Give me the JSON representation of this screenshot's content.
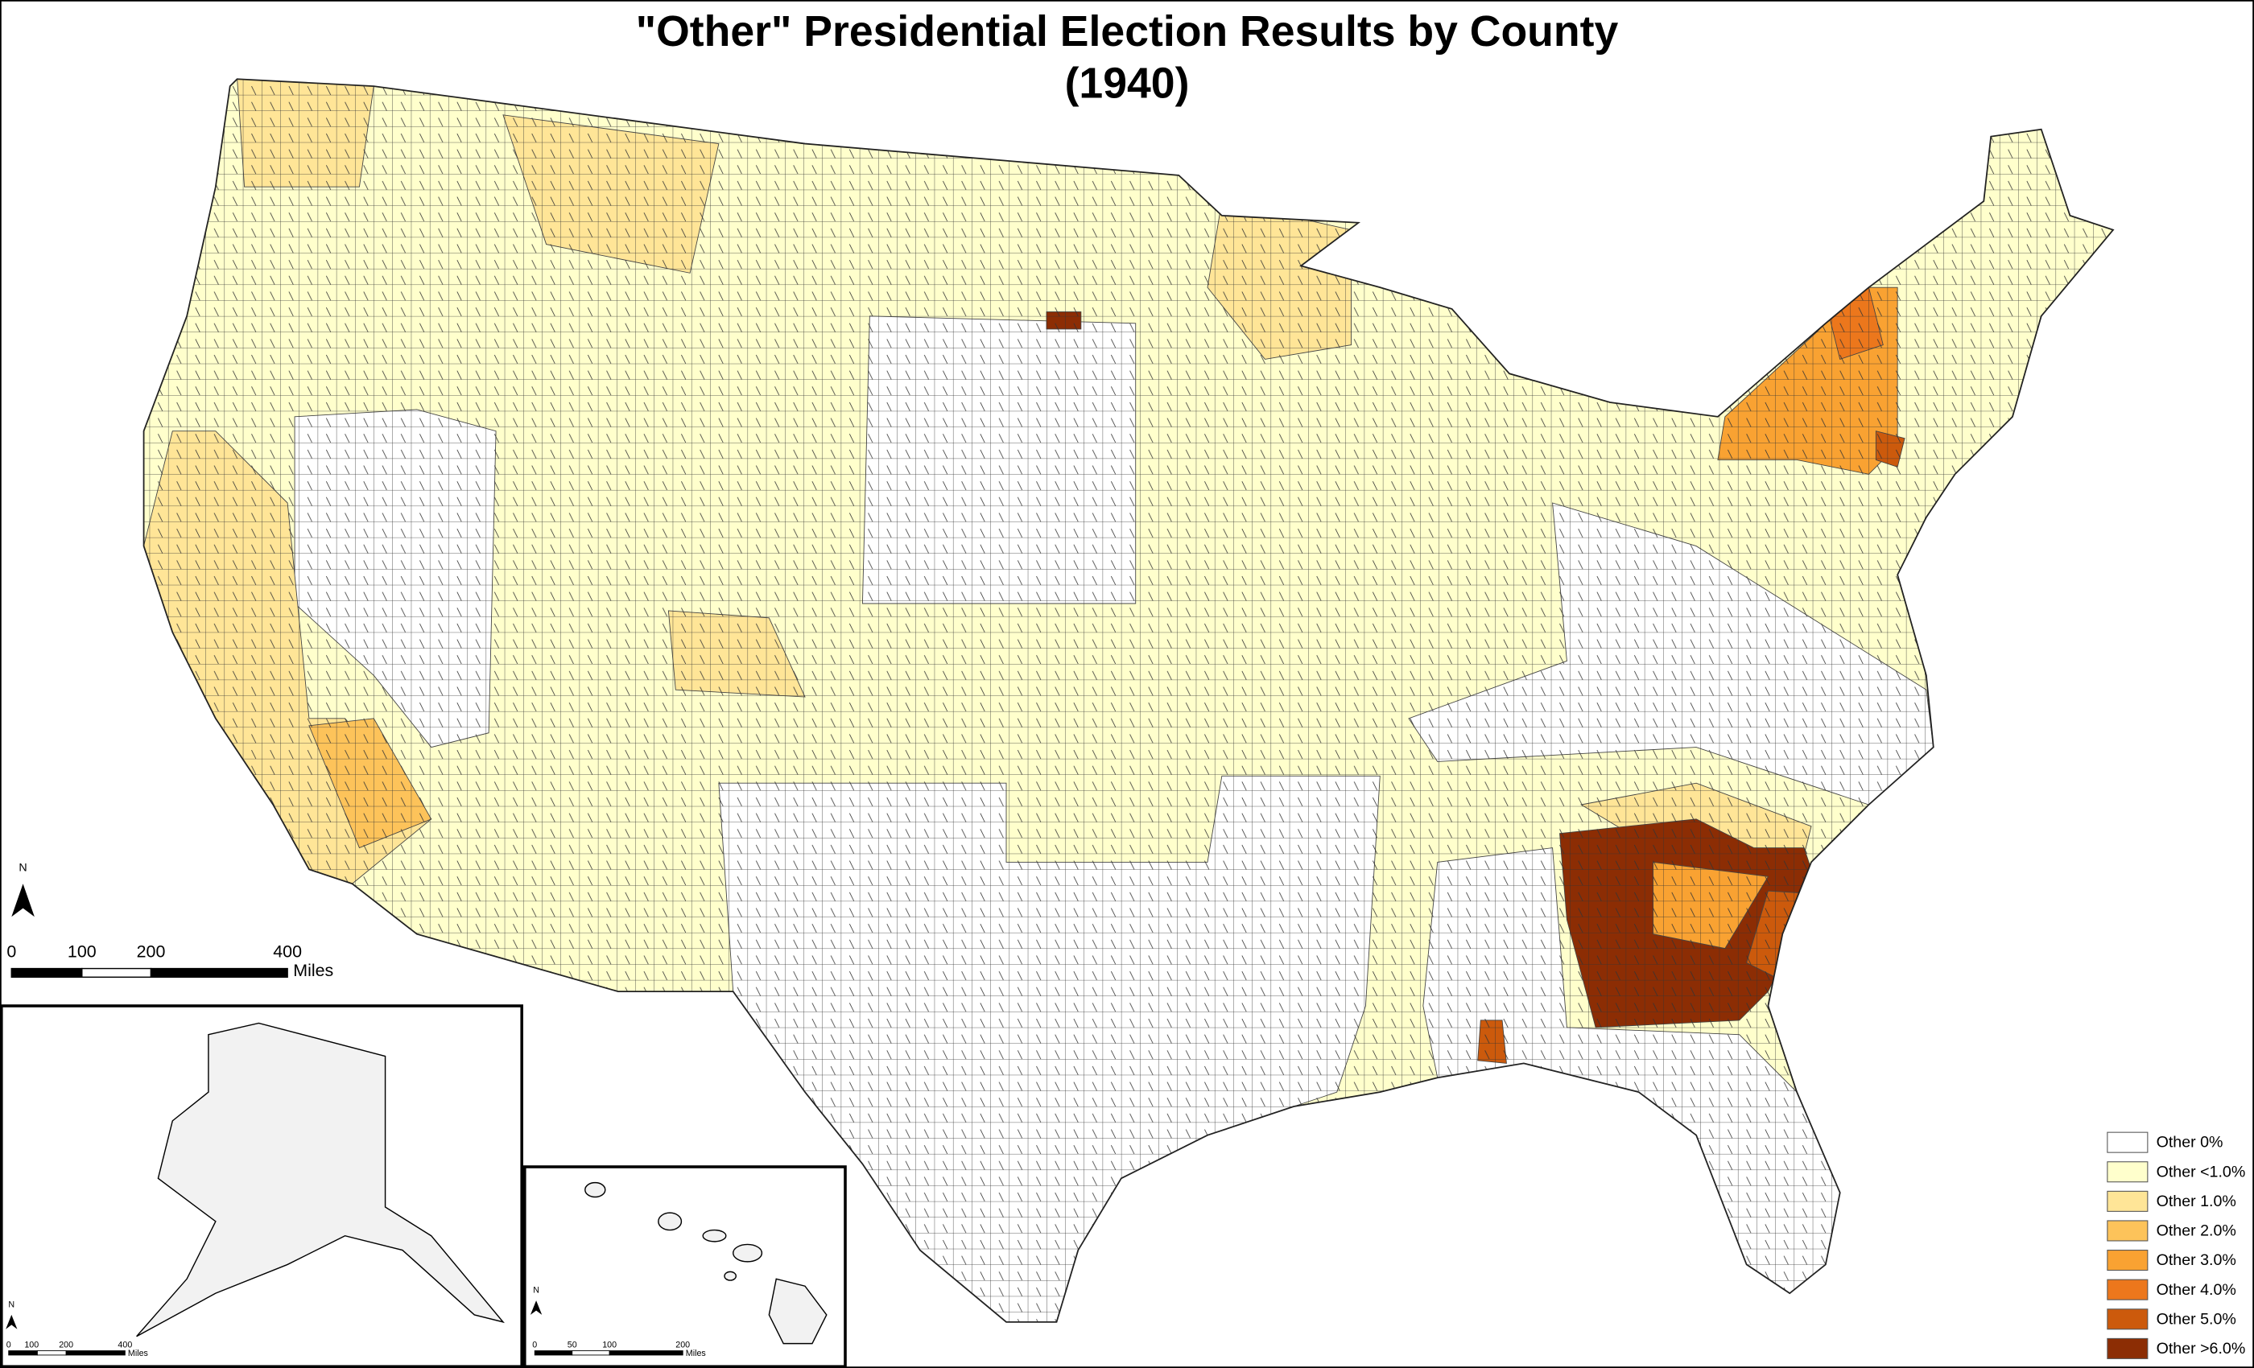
{
  "title": [
    "\"Other\" Presidential Election Results by County",
    "(1940)"
  ],
  "legend": [
    {
      "label": "Other 0%",
      "color": "#ffffff"
    },
    {
      "label": "Other <1.0%",
      "color": "#ffffcc"
    },
    {
      "label": "Other 1.0%",
      "color": "#ffe597"
    },
    {
      "label": "Other 2.0%",
      "color": "#fdc35a"
    },
    {
      "label": "Other 3.0%",
      "color": "#f9a232"
    },
    {
      "label": "Other 4.0%",
      "color": "#ec771c"
    },
    {
      "label": "Other 5.0%",
      "color": "#cc5a0c"
    },
    {
      "label": "Other >6.0%",
      "color": "#8c2d04"
    }
  ],
  "north_label": "N",
  "scale_bar": {
    "ticks": [
      "0",
      "100",
      "200",
      "400"
    ],
    "unit": "Miles"
  },
  "alaska_inset": {
    "north_label": "N",
    "ticks": [
      "0",
      "100",
      "200",
      "400"
    ],
    "unit": "Miles"
  },
  "hawaii_inset": {
    "north_label": "N",
    "ticks": [
      "0",
      "50",
      "100",
      "200"
    ],
    "unit": "Miles"
  }
}
